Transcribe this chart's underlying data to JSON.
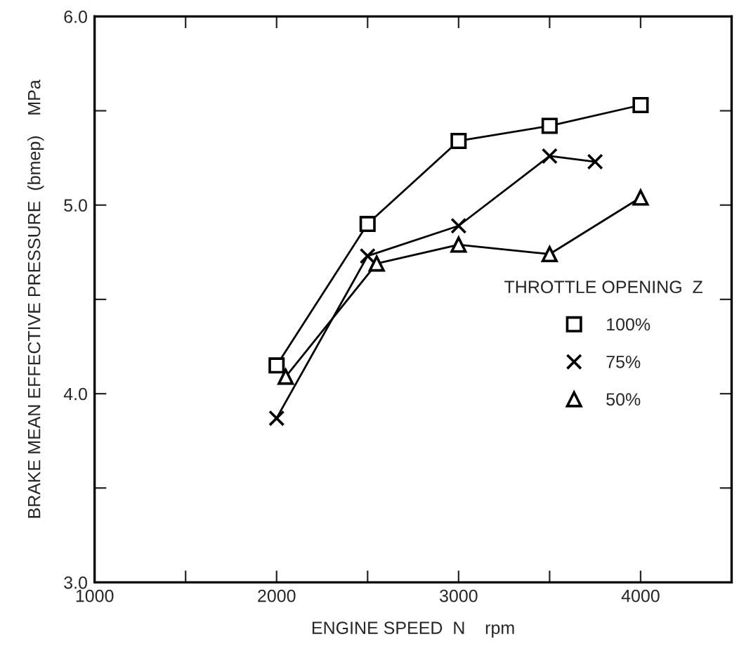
{
  "chart_data": {
    "type": "line",
    "xlabel": "ENGINE SPEED  N    rpm",
    "ylabel": "BRAKE MEAN EFFECTIVE PRESSURE  (bmep)    MPa",
    "legend_title": "THROTTLE OPENING  Z",
    "legend": "center right",
    "xlim": [
      1000,
      4500
    ],
    "xticks": [
      1000,
      {
        "value": 1500,
        "label": null
      },
      2000,
      {
        "value": 2500,
        "label": null
      },
      3000,
      {
        "value": 3500,
        "label": null
      },
      4000
    ],
    "ylim": [
      3.0,
      6.0
    ],
    "yticks": [
      {
        "value": 3,
        "label": "3.0"
      },
      {
        "value": 3.5,
        "label": null
      },
      {
        "value": 4,
        "label": "4.0"
      },
      {
        "value": 4.5,
        "label": null
      },
      {
        "value": 5,
        "label": "5.0"
      },
      {
        "value": 5.5,
        "label": null
      },
      {
        "value": 6,
        "label": "6.0"
      }
    ],
    "grid": false,
    "series": [
      {
        "name": "100%",
        "color": "#000000",
        "marker": "square",
        "x": [
          2000,
          2500,
          3000,
          3500,
          4000
        ],
        "values": [
          4.15,
          4.9,
          5.34,
          5.42,
          5.53
        ]
      },
      {
        "name": "75%",
        "color": "#000000",
        "marker": "cross",
        "x": [
          2000,
          2500,
          3000,
          3500,
          3750
        ],
        "values": [
          3.87,
          4.73,
          4.89,
          5.26,
          5.23
        ]
      },
      {
        "name": "50%",
        "color": "#000000",
        "marker": "triangle",
        "x": [
          2050,
          2550,
          3000,
          3500,
          4000
        ],
        "values": [
          4.09,
          4.69,
          4.79,
          4.74,
          5.04
        ]
      }
    ]
  }
}
